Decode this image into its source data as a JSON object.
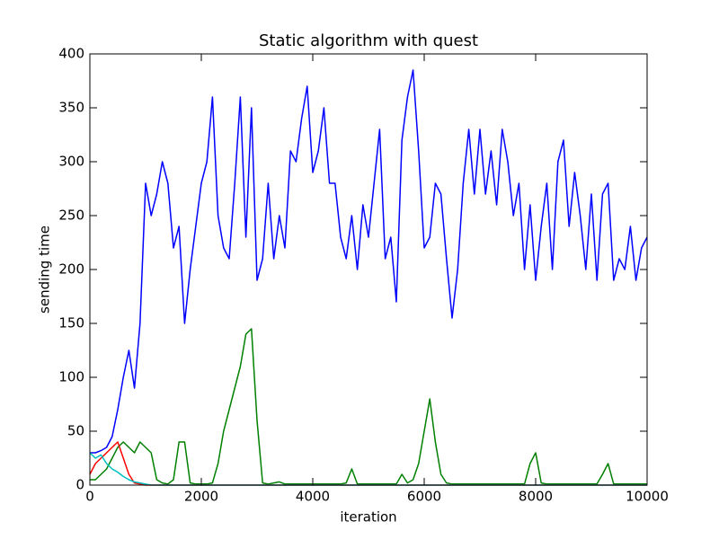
{
  "chart_data": {
    "type": "line",
    "title": "Static algorithm with quest",
    "x_label": "iteration",
    "y_label": "sending time",
    "x": [
      0,
      100,
      200,
      300,
      400,
      500,
      600,
      700,
      800,
      900,
      1000,
      1100,
      1200,
      1300,
      1400,
      1500,
      1600,
      1700,
      1800,
      1900,
      2000,
      2100,
      2200,
      2300,
      2400,
      2500,
      2600,
      2700,
      2800,
      2900,
      3000,
      3100,
      3200,
      3300,
      3400,
      3500,
      3600,
      3700,
      3800,
      3900,
      4000,
      4100,
      4200,
      4300,
      4400,
      4500,
      4600,
      4700,
      4800,
      4900,
      5000,
      5100,
      5200,
      5300,
      5400,
      5500,
      5600,
      5700,
      5800,
      5900,
      6000,
      6100,
      6200,
      6300,
      6400,
      6500,
      6600,
      6700,
      6800,
      6900,
      7000,
      7100,
      7200,
      7300,
      7400,
      7500,
      7600,
      7700,
      7800,
      7900,
      8000,
      8100,
      8200,
      8300,
      8400,
      8500,
      8600,
      8700,
      8800,
      8900,
      9000,
      9100,
      9200,
      9300,
      9400,
      9500,
      9600,
      9700,
      9800,
      9900,
      10000
    ],
    "series": [
      {
        "color": "#0000ff",
        "values": [
          30,
          30,
          32,
          35,
          45,
          70,
          100,
          125,
          90,
          150,
          280,
          250,
          270,
          300,
          280,
          220,
          240,
          150,
          200,
          240,
          280,
          300,
          360,
          250,
          220,
          210,
          280,
          360,
          230,
          350,
          190,
          210,
          280,
          210,
          250,
          220,
          310,
          300,
          340,
          370,
          290,
          310,
          350,
          280,
          280,
          230,
          210,
          250,
          200,
          260,
          230,
          280,
          330,
          210,
          230,
          170,
          320,
          360,
          385,
          310,
          220,
          230,
          280,
          270,
          210,
          155,
          200,
          280,
          330,
          270,
          330,
          270,
          310,
          260,
          330,
          300,
          250,
          280,
          200,
          260,
          190,
          240,
          280,
          200,
          300,
          320,
          240,
          290,
          250,
          200,
          270,
          190,
          270,
          280,
          190,
          210,
          200,
          240,
          190,
          220,
          230
        ]
      },
      {
        "color": "#008000",
        "values": [
          5,
          5,
          10,
          15,
          25,
          35,
          40,
          35,
          30,
          40,
          35,
          30,
          5,
          2,
          1,
          5,
          40,
          40,
          2,
          1,
          1,
          1,
          2,
          20,
          50,
          70,
          90,
          110,
          140,
          145,
          60,
          2,
          1,
          2,
          3,
          1,
          1,
          1,
          1,
          1,
          1,
          1,
          1,
          1,
          1,
          1,
          2,
          15,
          1,
          1,
          1,
          1,
          1,
          1,
          1,
          1,
          10,
          2,
          5,
          20,
          50,
          80,
          40,
          10,
          2,
          1,
          1,
          1,
          1,
          1,
          1,
          1,
          1,
          1,
          1,
          1,
          1,
          1,
          1,
          20,
          30,
          2,
          1,
          1,
          1,
          1,
          1,
          1,
          1,
          1,
          1,
          1,
          10,
          20,
          1,
          1,
          1,
          1,
          1,
          1,
          1
        ]
      },
      {
        "color": "#ff0000",
        "values": [
          10,
          20,
          25,
          30,
          35,
          40,
          25,
          10,
          2,
          1,
          0,
          0,
          0,
          0,
          0,
          0,
          0,
          0,
          0,
          0,
          0,
          0,
          0,
          0,
          0,
          0,
          0,
          0,
          0,
          0,
          0,
          0,
          0,
          0,
          0,
          0,
          0,
          0,
          0,
          0,
          0,
          0,
          0,
          0,
          0,
          0,
          0,
          0,
          0,
          0,
          0,
          0,
          0,
          0,
          0,
          0,
          0,
          0,
          0,
          0,
          0,
          0,
          0,
          0,
          0,
          0,
          0,
          0,
          0,
          0,
          0,
          0,
          0,
          0,
          0,
          0,
          0,
          0,
          0,
          0,
          0,
          0,
          0,
          0,
          0,
          0,
          0,
          0,
          0,
          0,
          0,
          0,
          0,
          0,
          0,
          0,
          0,
          0,
          0,
          0,
          0
        ]
      },
      {
        "color": "#00bfbf",
        "values": [
          30,
          25,
          28,
          20,
          15,
          12,
          8,
          5,
          3,
          2,
          1,
          0,
          0,
          0,
          0,
          0,
          0,
          0,
          0,
          0,
          0,
          0,
          0,
          0,
          0,
          0,
          0,
          0,
          0,
          0,
          0,
          0,
          0,
          0,
          0,
          0,
          0,
          0,
          0,
          0,
          0,
          0,
          0,
          0,
          0,
          0,
          0,
          0,
          0,
          0,
          0,
          0,
          0,
          0,
          0,
          0,
          0,
          0,
          0,
          0,
          0,
          0,
          0,
          0,
          0,
          0,
          0,
          0,
          0,
          0,
          0,
          0,
          0,
          0,
          0,
          0,
          0,
          0,
          0,
          0,
          0,
          0,
          0,
          0,
          0,
          0,
          0,
          0,
          0,
          0,
          0,
          0,
          0,
          0,
          0,
          0,
          0,
          0,
          0,
          0,
          0
        ]
      }
    ],
    "xlim": [
      0,
      10000
    ],
    "xticks": [
      0,
      2000,
      4000,
      6000,
      8000,
      10000
    ],
    "ylim": [
      0,
      400
    ],
    "yticks": [
      0,
      50,
      100,
      150,
      200,
      250,
      300,
      350,
      400
    ],
    "grid": false
  }
}
